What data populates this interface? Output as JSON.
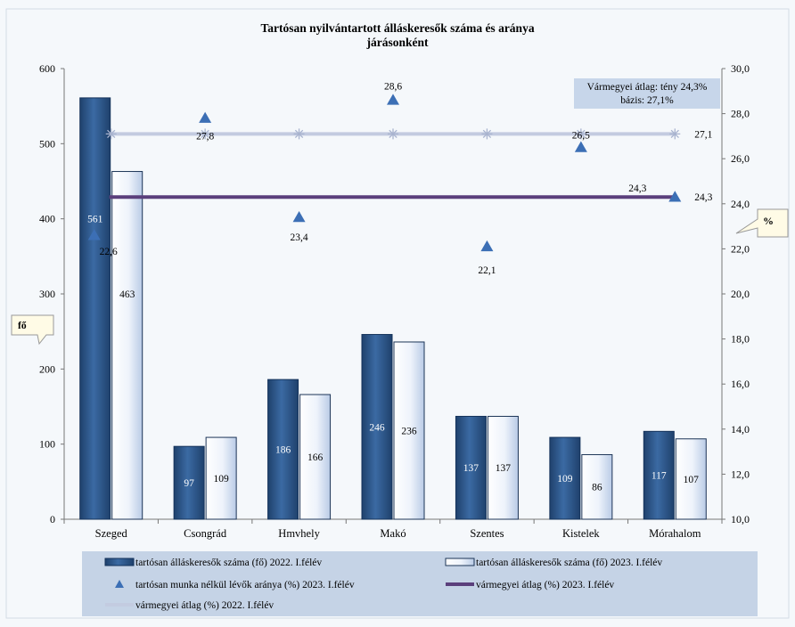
{
  "chart_data": {
    "type": "bar",
    "title": "Tartósan nyilvántartott  álláskeresők száma és aránya",
    "subtitle": "járásonként",
    "categories": [
      "Szeged",
      "Csongrád",
      "Hmvhely",
      "Makó",
      "Szentes",
      "Kistelek",
      "Mórahalom"
    ],
    "left_axis": {
      "label": "fő",
      "range": [
        0,
        600
      ],
      "ticks": [
        "0",
        "100",
        "200",
        "300",
        "400",
        "500",
        "600"
      ]
    },
    "right_axis": {
      "label": "%",
      "range": [
        10,
        30
      ],
      "ticks": [
        "10,0",
        "12,0",
        "14,0",
        "16,0",
        "18,0",
        "20,0",
        "22,0",
        "24,0",
        "26,0",
        "28,0",
        "30,0"
      ]
    },
    "series": [
      {
        "name": "tartósan álláskeresők száma (fő) 2022. I.félév",
        "kind": "bar",
        "axis": "left",
        "color": "#2e5a8f",
        "values": [
          561,
          97,
          186,
          246,
          137,
          109,
          117
        ],
        "labels": [
          "561",
          "97",
          "186",
          "246",
          "137",
          "109",
          "117"
        ]
      },
      {
        "name": "tartósan álláskeresők száma (fő) 2023. I.félév",
        "kind": "bar",
        "axis": "left",
        "color": "#e3ecf8",
        "values": [
          463,
          109,
          166,
          236,
          137,
          86,
          107
        ],
        "labels": [
          "463",
          "109",
          "166",
          "236",
          "137",
          "86",
          "107"
        ]
      },
      {
        "name": "tartósan munka nélkül lévők aránya (%) 2023. I.félév",
        "kind": "scatter",
        "axis": "right",
        "color": "#3c6fb5",
        "values": [
          22.6,
          27.8,
          23.4,
          28.6,
          22.1,
          26.5,
          24.3
        ],
        "labels": [
          "22,6",
          "27,8",
          "23,4",
          "28,6",
          "22,1",
          "26,5",
          "24,3"
        ]
      },
      {
        "name": "vármegyei átlag (%) 2023. I.félév",
        "kind": "line",
        "axis": "right",
        "color": "#5b3f7c",
        "values": [
          24.3,
          24.3,
          24.3,
          24.3,
          24.3,
          24.3,
          24.3
        ],
        "label": "24,3"
      },
      {
        "name": "vármegyei átlag (%) 2022. I.félév",
        "kind": "line",
        "axis": "right",
        "color": "#c3cbe0",
        "values": [
          27.1,
          27.1,
          27.1,
          27.1,
          27.1,
          27.1,
          27.1
        ],
        "label": "27,1"
      }
    ],
    "annotation": {
      "line1": "Vármegyei  átlag: tény 24,3%",
      "line2": "bázis: 27,1%"
    },
    "grid": false,
    "legend_position": "bottom"
  }
}
